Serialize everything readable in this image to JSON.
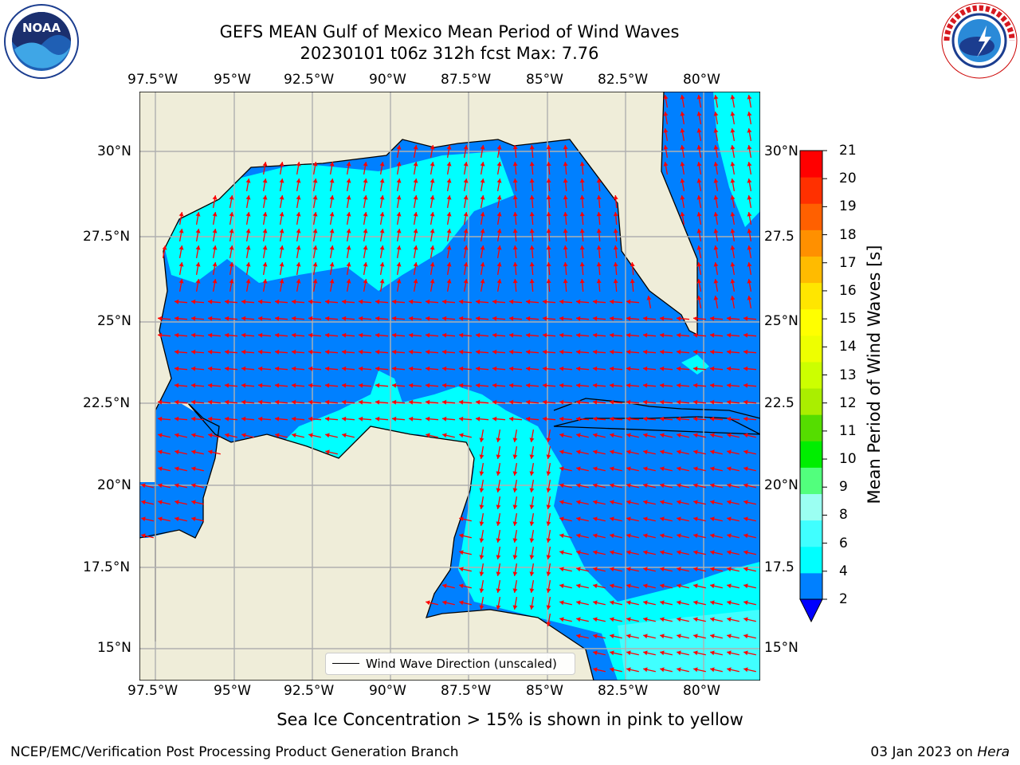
{
  "title": {
    "line1": "GEFS MEAN Gulf of Mexico Mean Period of Wind Waves",
    "line2": "20230101 t06z 312h fcst   Max: 7.76"
  },
  "map": {
    "lon_labels": [
      "97.5°W",
      "95°W",
      "92.5°W",
      "90°W",
      "87.5°W",
      "85°W",
      "82.5°W",
      "80°W"
    ],
    "lat_labels": [
      "30°N",
      "27.5°N",
      "25°N",
      "22.5°N",
      "20°N",
      "17.5°N",
      "15°N"
    ],
    "right_lat_labels": [
      "30°N",
      "27.5",
      "25°N",
      "22.5",
      "20°N",
      "17.5",
      "15°N"
    ],
    "extent": {
      "lon_min": -98,
      "lon_max": -78.3,
      "lat_min": 14.0,
      "lat_max": 31.7
    },
    "colors": {
      "land": "#efedd9",
      "water_low": "#0080ff",
      "water_mid": "#00ffff",
      "water_deep": "#0000ff",
      "arrow": "#ff0000",
      "grid": "#b0b0b0"
    }
  },
  "legend": {
    "label": "Wind Wave Direction (unscaled)"
  },
  "colorbar": {
    "label": "Mean Period of Wind Waves [s]",
    "ticks": [
      "2",
      "4",
      "6",
      "8",
      "9",
      "10",
      "11",
      "12",
      "13",
      "14",
      "15",
      "16",
      "17",
      "18",
      "19",
      "20",
      "21"
    ],
    "colors": [
      "#0080ff",
      "#00ffff",
      "#40ffff",
      "#9bfff2",
      "#52ff7d",
      "#00ee00",
      "#55dd00",
      "#aaee00",
      "#ccff00",
      "#eeff00",
      "#ffff00",
      "#ffe600",
      "#ffbb00",
      "#ff9000",
      "#ff6000",
      "#ff3000",
      "#ff0000"
    ],
    "under_color": "#0000ff"
  },
  "note": "Sea Ice Concentration > 15% is shown in pink to yellow",
  "footer": {
    "left": "NCEP/EMC/Verification Post Processing Product Generation Branch",
    "date": "03 Jan 2023",
    "on": "on",
    "machine": "Hera"
  },
  "logos": {
    "noaa_text": "NOAA",
    "nws_text": "NATIONAL WEATHER SERVICE"
  }
}
